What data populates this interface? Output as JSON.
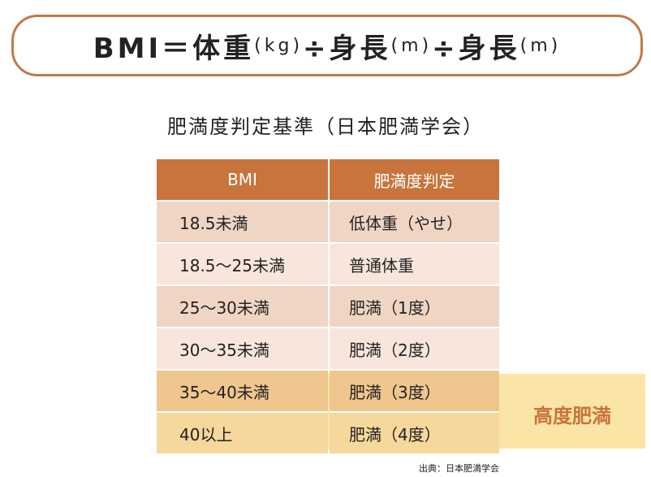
{
  "formula": [
    "BMI＝体重",
    "(kg)",
    "÷身長",
    "(m)",
    "÷身長",
    "(m)"
  ],
  "title": "肥満度判定基準（日本肥満学会）",
  "table": {
    "header": [
      "BMI",
      "肥満度判定"
    ],
    "rows": [
      [
        "18.5未満",
        "低体重（やせ）"
      ],
      [
        "18.5〜25未満",
        "普通体重"
      ],
      [
        "25〜30未満",
        "肥満（1度）"
      ],
      [
        "30〜35未満",
        "肥満（2度）"
      ],
      [
        "35〜40未満",
        "肥満（3度）"
      ],
      [
        "40以上",
        "肥満（4度）"
      ]
    ]
  },
  "highlight": "高度肥満",
  "source": "出典：日本肥満学会"
}
